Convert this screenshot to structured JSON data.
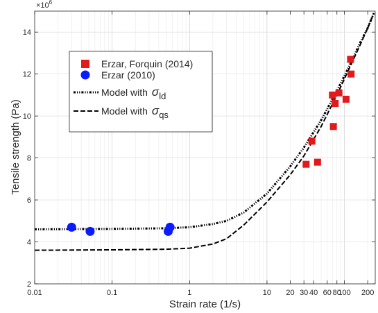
{
  "chart_data": {
    "type": "scatter",
    "title": "",
    "xlabel": "Strain rate (1/s)",
    "ylabel": "Tensile strength (Pa)",
    "y_exponent_label": "×10",
    "y_exponent_power": "6",
    "x_scale": "log",
    "xlim": [
      0.01,
      250
    ],
    "ylim": [
      2,
      15
    ],
    "grid": true,
    "x_ticks": [
      {
        "value": 0.01,
        "label": "0.01"
      },
      {
        "value": 0.1,
        "label": "0.1"
      },
      {
        "value": 1,
        "label": "1"
      },
      {
        "value": 10,
        "label": "10"
      },
      {
        "value": 20,
        "label": "20"
      },
      {
        "value": 30,
        "label": "30"
      },
      {
        "value": 40,
        "label": "40"
      },
      {
        "value": 60,
        "label": "60"
      },
      {
        "value": 80,
        "label": "80"
      },
      {
        "value": 100,
        "label": "100"
      },
      {
        "value": 200,
        "label": "200"
      }
    ],
    "y_ticks": [
      {
        "value": 2,
        "label": "2"
      },
      {
        "value": 4,
        "label": "4"
      },
      {
        "value": 6,
        "label": "6"
      },
      {
        "value": 8,
        "label": "8"
      },
      {
        "value": 10,
        "label": "10"
      },
      {
        "value": 12,
        "label": "12"
      },
      {
        "value": 14,
        "label": "14"
      }
    ],
    "legend_position": "upper-left",
    "series": [
      {
        "name": "Erzar, Forquin (2014)",
        "kind": "marker",
        "marker": "square",
        "color": "#e31a1c",
        "points": [
          [
            32,
            7.7
          ],
          [
            38,
            8.8
          ],
          [
            45,
            7.8
          ],
          [
            70,
            11.0
          ],
          [
            72,
            9.5
          ],
          [
            76,
            10.6
          ],
          [
            85,
            11.1
          ],
          [
            105,
            10.8
          ],
          [
            120,
            12.7
          ],
          [
            122,
            12.0
          ]
        ]
      },
      {
        "name": "Erzar (2010)",
        "kind": "marker",
        "marker": "circle",
        "color": "#0a1bff",
        "points": [
          [
            0.03,
            4.7
          ],
          [
            0.052,
            4.5
          ],
          [
            0.53,
            4.5
          ],
          [
            0.56,
            4.7
          ]
        ]
      },
      {
        "name": "Model with",
        "symbol": "σ",
        "subscript": "ld",
        "kind": "line",
        "dash": "dashdotdot",
        "color": "#000000",
        "points": [
          [
            0.01,
            4.6
          ],
          [
            0.1,
            4.62
          ],
          [
            0.5,
            4.65
          ],
          [
            1,
            4.7
          ],
          [
            2,
            4.85
          ],
          [
            3,
            5.0
          ],
          [
            5,
            5.4
          ],
          [
            10,
            6.3
          ],
          [
            20,
            7.6
          ],
          [
            30,
            8.5
          ],
          [
            50,
            9.8
          ],
          [
            80,
            11.2
          ],
          [
            120,
            12.5
          ],
          [
            160,
            13.5
          ],
          [
            200,
            14.2
          ],
          [
            240,
            14.9
          ]
        ]
      },
      {
        "name": "Model with",
        "symbol": "σ",
        "subscript": "qs",
        "kind": "line",
        "dash": "dashed",
        "color": "#000000",
        "points": [
          [
            0.01,
            3.6
          ],
          [
            0.1,
            3.62
          ],
          [
            0.5,
            3.65
          ],
          [
            1,
            3.7
          ],
          [
            2,
            3.9
          ],
          [
            3,
            4.15
          ],
          [
            5,
            4.8
          ],
          [
            10,
            5.9
          ],
          [
            20,
            7.2
          ],
          [
            30,
            8.1
          ],
          [
            50,
            9.5
          ],
          [
            80,
            11.0
          ],
          [
            120,
            12.4
          ],
          [
            160,
            13.4
          ],
          [
            200,
            14.2
          ],
          [
            240,
            14.9
          ]
        ]
      }
    ]
  }
}
